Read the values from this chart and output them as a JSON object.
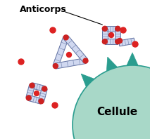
{
  "bg_color": "#ffffff",
  "cell_color": "#a8d8c8",
  "cell_edge_color": "#2a9d8f",
  "spike_color": "#2a9d8f",
  "antibody_fill": "#d0d8f0",
  "antibody_edge": "#6070a0",
  "antibody_stripe": "#8090b8",
  "hinge_color": "#cc2222",
  "toxin_color": "#dd2222",
  "label_anticorps": "Anticorps",
  "label_cellule": "Cellule",
  "title_fontsize": 9,
  "cell_fontsize": 11
}
